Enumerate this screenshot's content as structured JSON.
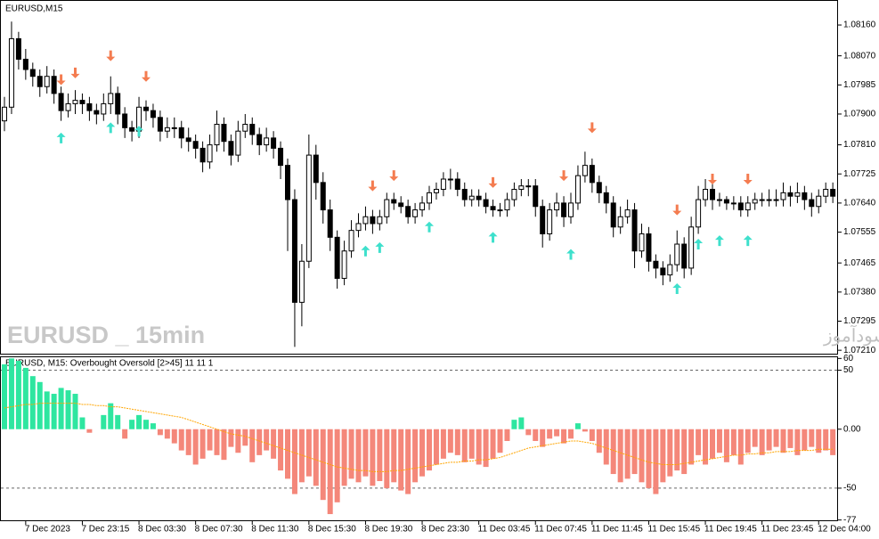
{
  "chart_data": [
    {
      "type": "candlestick",
      "title": "EURUSD,M15",
      "annotations": [
        "EURUSD _ 15min",
        "انتشار در سایت سودآموز"
      ],
      "up_color": "#ffffff",
      "down_color": "#000000",
      "ylim": [
        1.072,
        1.08233
      ],
      "yticks": [
        {
          "value": 1.0816,
          "label": "1.08160"
        },
        {
          "value": 1.0807,
          "label": "1.08070"
        },
        {
          "value": 1.07985,
          "label": "1.07985"
        },
        {
          "value": 1.079,
          "label": "1.07900"
        },
        {
          "value": 1.0781,
          "label": "1.07810"
        },
        {
          "value": 1.07725,
          "label": "1.07725"
        },
        {
          "value": 1.0764,
          "label": "1.07640"
        },
        {
          "value": 1.07555,
          "label": "1.07555"
        },
        {
          "value": 1.07465,
          "label": "1.07465"
        },
        {
          "value": 1.0738,
          "label": "1.07380"
        },
        {
          "value": 1.07295,
          "label": "1.07295"
        },
        {
          "value": 1.0721,
          "label": "1.07210"
        }
      ],
      "ohlc": [
        [
          1.0788,
          1.0795,
          1.0785,
          1.0792
        ],
        [
          1.0792,
          1.0817,
          1.079,
          1.0812
        ],
        [
          1.0812,
          1.0814,
          1.0803,
          1.0806
        ],
        [
          1.0806,
          1.0809,
          1.08,
          1.0803
        ],
        [
          1.0803,
          1.0805,
          1.0798,
          1.0801
        ],
        [
          1.0801,
          1.0803,
          1.0795,
          1.0798
        ],
        [
          1.0798,
          1.0804,
          1.0796,
          1.0801
        ],
        [
          1.0801,
          1.0803,
          1.0793,
          1.0796
        ],
        [
          1.0796,
          1.0798,
          1.0788,
          1.0791
        ],
        [
          1.0791,
          1.0796,
          1.0789,
          1.0793
        ],
        [
          1.0793,
          1.0797,
          1.079,
          1.0794
        ],
        [
          1.0794,
          1.0796,
          1.079,
          1.0793
        ],
        [
          1.0793,
          1.0795,
          1.0788,
          1.0791
        ],
        [
          1.0791,
          1.0793,
          1.0787,
          1.079
        ],
        [
          1.079,
          1.0796,
          1.0788,
          1.0793
        ],
        [
          1.0793,
          1.0801,
          1.079,
          1.0796
        ],
        [
          1.0796,
          1.0798,
          1.0787,
          1.079
        ],
        [
          1.079,
          1.0792,
          1.0783,
          1.0786
        ],
        [
          1.0786,
          1.0788,
          1.0782,
          1.0785
        ],
        [
          1.0785,
          1.0795,
          1.0783,
          1.0792
        ],
        [
          1.0792,
          1.0794,
          1.0788,
          1.0791
        ],
        [
          1.0791,
          1.0793,
          1.0786,
          1.0789
        ],
        [
          1.0789,
          1.0791,
          1.0782,
          1.0785
        ],
        [
          1.0785,
          1.0789,
          1.0783,
          1.0786
        ],
        [
          1.0786,
          1.0789,
          1.0783,
          1.0786
        ],
        [
          1.0786,
          1.0788,
          1.078,
          1.0783
        ],
        [
          1.0783,
          1.0786,
          1.0779,
          1.0782
        ],
        [
          1.0782,
          1.0784,
          1.0777,
          1.078
        ],
        [
          1.078,
          1.0782,
          1.0773,
          1.0776
        ],
        [
          1.0776,
          1.0784,
          1.0774,
          1.0781
        ],
        [
          1.0781,
          1.0791,
          1.0779,
          1.0787
        ],
        [
          1.0787,
          1.0789,
          1.0779,
          1.0782
        ],
        [
          1.0782,
          1.0784,
          1.0775,
          1.0778
        ],
        [
          1.0778,
          1.0788,
          1.0776,
          1.0785
        ],
        [
          1.0785,
          1.079,
          1.0783,
          1.0787
        ],
        [
          1.0787,
          1.0789,
          1.0781,
          1.0784
        ],
        [
          1.0784,
          1.0786,
          1.0778,
          1.0781
        ],
        [
          1.0781,
          1.0786,
          1.0779,
          1.0783
        ],
        [
          1.0783,
          1.0785,
          1.0777,
          1.078
        ],
        [
          1.078,
          1.0782,
          1.0771,
          1.0775
        ],
        [
          1.0775,
          1.0777,
          1.075,
          1.0765
        ],
        [
          1.0765,
          1.0768,
          1.0722,
          1.0735
        ],
        [
          1.0735,
          1.0752,
          1.0728,
          1.0747
        ],
        [
          1.0747,
          1.0784,
          1.0745,
          1.0778
        ],
        [
          1.0778,
          1.0781,
          1.0765,
          1.077
        ],
        [
          1.077,
          1.0773,
          1.0758,
          1.0762
        ],
        [
          1.0762,
          1.0765,
          1.075,
          1.0754
        ],
        [
          1.0754,
          1.0756,
          1.0739,
          1.0742
        ],
        [
          1.0742,
          1.0753,
          1.074,
          1.075
        ],
        [
          1.075,
          1.0759,
          1.0748,
          1.0756
        ],
        [
          1.0756,
          1.0761,
          1.0754,
          1.0758
        ],
        [
          1.0758,
          1.0763,
          1.0756,
          1.076
        ],
        [
          1.076,
          1.0762,
          1.0755,
          1.0758
        ],
        [
          1.0758,
          1.0762,
          1.0756,
          1.076
        ],
        [
          1.076,
          1.0767,
          1.0758,
          1.0765
        ],
        [
          1.0765,
          1.0767,
          1.0762,
          1.0764
        ],
        [
          1.0764,
          1.0766,
          1.0761,
          1.0763
        ],
        [
          1.0763,
          1.0765,
          1.0758,
          1.076
        ],
        [
          1.076,
          1.0764,
          1.0758,
          1.0762
        ],
        [
          1.0762,
          1.0766,
          1.076,
          1.0764
        ],
        [
          1.0764,
          1.0769,
          1.0762,
          1.0767
        ],
        [
          1.0767,
          1.077,
          1.0765,
          1.0768
        ],
        [
          1.0768,
          1.0773,
          1.0766,
          1.0771
        ],
        [
          1.0771,
          1.0774,
          1.0768,
          1.0771
        ],
        [
          1.0771,
          1.0773,
          1.0766,
          1.0768
        ],
        [
          1.0768,
          1.077,
          1.0763,
          1.0765
        ],
        [
          1.0765,
          1.0768,
          1.0763,
          1.0766
        ],
        [
          1.0766,
          1.0768,
          1.0763,
          1.0765
        ],
        [
          1.0765,
          1.0767,
          1.0761,
          1.0763
        ],
        [
          1.0763,
          1.0765,
          1.076,
          1.0762
        ],
        [
          1.0762,
          1.0764,
          1.076,
          1.0762
        ],
        [
          1.0762,
          1.0767,
          1.076,
          1.0765
        ],
        [
          1.0765,
          1.077,
          1.0763,
          1.0768
        ],
        [
          1.0768,
          1.0771,
          1.0766,
          1.0769
        ],
        [
          1.0769,
          1.0771,
          1.0766,
          1.0769
        ],
        [
          1.0769,
          1.0771,
          1.076,
          1.0763
        ],
        [
          1.0763,
          1.0765,
          1.0751,
          1.0755
        ],
        [
          1.0755,
          1.0764,
          1.0753,
          1.0762
        ],
        [
          1.0762,
          1.0767,
          1.076,
          1.0764
        ],
        [
          1.0764,
          1.0766,
          1.0757,
          1.076
        ],
        [
          1.076,
          1.0767,
          1.0758,
          1.0764
        ],
        [
          1.0764,
          1.0775,
          1.0762,
          1.0772
        ],
        [
          1.0772,
          1.0779,
          1.077,
          1.0775
        ],
        [
          1.0775,
          1.0777,
          1.0767,
          1.077
        ],
        [
          1.077,
          1.0772,
          1.0764,
          1.0767
        ],
        [
          1.0767,
          1.0769,
          1.0761,
          1.0764
        ],
        [
          1.0764,
          1.0766,
          1.0754,
          1.0757
        ],
        [
          1.0757,
          1.0763,
          1.0755,
          1.076
        ],
        [
          1.076,
          1.0765,
          1.0758,
          1.0762
        ],
        [
          1.0762,
          1.0764,
          1.0745,
          1.075
        ],
        [
          1.075,
          1.0758,
          1.0748,
          1.0755
        ],
        [
          1.0755,
          1.0757,
          1.0744,
          1.0747
        ],
        [
          1.0747,
          1.0749,
          1.0742,
          1.0745
        ],
        [
          1.0745,
          1.0747,
          1.074,
          1.0743
        ],
        [
          1.0743,
          1.0749,
          1.0741,
          1.0746
        ],
        [
          1.0746,
          1.0756,
          1.0744,
          1.0752
        ],
        [
          1.0752,
          1.0754,
          1.0742,
          1.0745
        ],
        [
          1.0745,
          1.076,
          1.0743,
          1.0757
        ],
        [
          1.0757,
          1.0769,
          1.0755,
          1.0765
        ],
        [
          1.0765,
          1.0771,
          1.0763,
          1.0768
        ],
        [
          1.0768,
          1.077,
          1.0762,
          1.0765
        ],
        [
          1.0765,
          1.0767,
          1.0763,
          1.0765
        ],
        [
          1.0765,
          1.0766,
          1.0762,
          1.0764
        ],
        [
          1.0764,
          1.0766,
          1.0762,
          1.0764
        ],
        [
          1.0764,
          1.0766,
          1.076,
          1.0762
        ],
        [
          1.0762,
          1.0766,
          1.076,
          1.0764
        ],
        [
          1.0764,
          1.0767,
          1.0762,
          1.0765
        ],
        [
          1.0765,
          1.0767,
          1.0763,
          1.0765
        ],
        [
          1.0765,
          1.0768,
          1.0763,
          1.0765
        ],
        [
          1.0765,
          1.0768,
          1.0763,
          1.0765
        ],
        [
          1.0765,
          1.077,
          1.0763,
          1.0767
        ],
        [
          1.0767,
          1.0769,
          1.0763,
          1.0766
        ],
        [
          1.0766,
          1.077,
          1.0764,
          1.0767
        ],
        [
          1.0767,
          1.0769,
          1.0762,
          1.0765
        ],
        [
          1.0765,
          1.0767,
          1.076,
          1.0763
        ],
        [
          1.0763,
          1.0768,
          1.0761,
          1.0766
        ],
        [
          1.0766,
          1.077,
          1.0764,
          1.0768
        ],
        [
          1.0768,
          1.077,
          1.0764,
          1.0766
        ]
      ],
      "up_arrows": {
        "color": "#3ee0cc",
        "x": [
          8,
          15,
          19,
          51,
          53,
          60,
          69,
          80,
          95,
          98,
          101,
          105
        ],
        "values": [
          1.0783,
          1.0786,
          1.0785,
          1.075,
          1.0751,
          1.0757,
          1.0754,
          1.0749,
          1.0739,
          1.0752,
          1.0753,
          1.0753
        ]
      },
      "down_arrows": {
        "color": "#f47c50",
        "x": [
          8,
          10,
          15,
          20,
          52,
          55,
          69,
          79,
          83,
          95,
          100,
          105
        ],
        "values": [
          1.08,
          1.0802,
          1.0807,
          1.0801,
          1.0769,
          1.0772,
          1.077,
          1.0772,
          1.0786,
          1.0762,
          1.0771,
          1.0771
        ]
      }
    },
    {
      "type": "bar",
      "title": "EURUSD, M15: Overbought Oversold [2>45]  11 11 1",
      "positive_color": "#2ee6a0",
      "negative_color": "#f4877a",
      "ylim": [
        -78,
        61
      ],
      "yticks": [
        60,
        50,
        {
          "value": 0,
          "label": "0.00"
        },
        -50,
        -77
      ],
      "levels": [
        50,
        -50
      ],
      "categories": [
        null,
        null,
        null,
        "7 Dec 2023",
        null,
        null,
        null,
        null,
        null,
        null,
        null,
        "7 Dec 23:15",
        null,
        null,
        null,
        null,
        null,
        null,
        null,
        "8 Dec 03:30",
        null,
        null,
        null,
        null,
        null,
        null,
        null,
        "8 Dec 07:30",
        null,
        null,
        null,
        null,
        null,
        null,
        null,
        "8 Dec 11:30",
        null,
        null,
        null,
        null,
        null,
        null,
        null,
        "8 Dec 15:30",
        null,
        null,
        null,
        null,
        null,
        null,
        null,
        "8 Dec 19:30",
        null,
        null,
        null,
        null,
        null,
        null,
        null,
        "8 Dec 23:30",
        null,
        null,
        null,
        null,
        null,
        null,
        null,
        "11 Dec 03:45",
        null,
        null,
        null,
        null,
        null,
        null,
        null,
        "11 Dec 07:45",
        null,
        null,
        null,
        null,
        null,
        null,
        null,
        "11 Dec 11:45",
        null,
        null,
        null,
        null,
        null,
        null,
        null,
        "11 Dec 15:45",
        null,
        null,
        null,
        null,
        null,
        null,
        null,
        "11 Dec 19:45",
        null,
        null,
        null,
        null,
        null,
        null,
        null,
        "11 Dec 23:45",
        null,
        null,
        null,
        null,
        null,
        null,
        null,
        "12 Dec 04:00",
        null,
        null
      ],
      "values": [
        55,
        60,
        58,
        52,
        45,
        40,
        32,
        30,
        35,
        33,
        30,
        10,
        -3,
        0,
        12,
        22,
        12,
        -8,
        8,
        12,
        8,
        5,
        -5,
        -8,
        -12,
        -18,
        -22,
        -30,
        -25,
        -18,
        -22,
        -26,
        -15,
        -20,
        -14,
        -28,
        -22,
        -18,
        -25,
        -35,
        -42,
        -55,
        -45,
        -40,
        -48,
        -60,
        -72,
        -62,
        -48,
        -42,
        -45,
        -40,
        -48,
        -44,
        -50,
        -45,
        -52,
        -55,
        -45,
        -40,
        -35,
        -30,
        -25,
        -20,
        -22,
        -28,
        -25,
        -30,
        -32,
        -25,
        -20,
        -10,
        8,
        10,
        -5,
        -10,
        -15,
        -8,
        -6,
        -12,
        -8,
        5,
        -2,
        -10,
        -20,
        -30,
        -38,
        -45,
        -42,
        -38,
        -45,
        -50,
        -55,
        -45,
        -40,
        -35,
        -38,
        -30,
        -22,
        -30,
        -25,
        -20,
        -28,
        -22,
        -30,
        -20,
        -15,
        -22,
        -18,
        -15,
        -20,
        -16,
        -22,
        -18,
        -15,
        -20,
        -18,
        -22
      ],
      "signal": {
        "color": "#ffa500",
        "values": [
          18,
          19,
          20,
          21,
          21,
          22,
          22,
          22,
          22,
          22,
          22,
          21,
          21,
          20,
          20,
          19,
          19,
          18,
          17,
          16,
          15,
          14,
          13,
          12,
          11,
          10,
          8,
          6,
          4,
          2,
          0,
          -2,
          -4,
          -5,
          -6,
          -8,
          -10,
          -12,
          -14,
          -16,
          -18,
          -20,
          -22,
          -24,
          -26,
          -28,
          -30,
          -32,
          -33,
          -34,
          -35,
          -35,
          -36,
          -36,
          -36,
          -35,
          -35,
          -34,
          -33,
          -32,
          -31,
          -30,
          -29,
          -28,
          -28,
          -27,
          -27,
          -26,
          -26,
          -25,
          -24,
          -22,
          -20,
          -18,
          -16,
          -15,
          -14,
          -13,
          -12,
          -11,
          -10,
          -10,
          -11,
          -12,
          -14,
          -16,
          -18,
          -20,
          -22,
          -24,
          -26,
          -28,
          -29,
          -30,
          -30,
          -30,
          -29,
          -28,
          -27,
          -26,
          -25,
          -24,
          -23,
          -22,
          -22,
          -21,
          -21,
          -20,
          -20,
          -19,
          -19,
          -19,
          -18,
          -18,
          -18,
          -17,
          -17,
          -17
        ]
      }
    }
  ]
}
